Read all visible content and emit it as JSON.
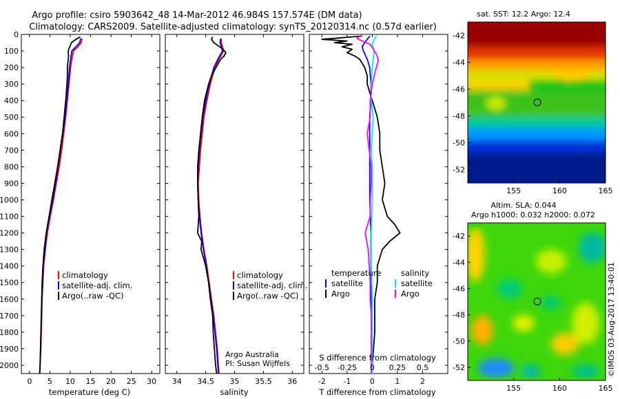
{
  "title_line1": "Argo profile: csiro 5903642_48 14-Mar-2012 46.984S 157.574E (DM data)",
  "title_line2": "Climatology: CARS2009. Satellite-adjusted climatology: synTS_20120314.nc (0.57d earlier)",
  "colors": {
    "climatology": "#ff0000",
    "satellite": "#0000ff",
    "argo": "#000000",
    "sal_satellite": "#00e5ff",
    "sal_argo": "#ff00ff"
  },
  "chart_data": [
    {
      "type": "line",
      "name": "temperature",
      "xlabel": "temperature (deg C)",
      "ylabel": "",
      "xlim": [
        -2,
        32
      ],
      "ylim": [
        2050,
        0
      ],
      "xticks": [
        "0",
        "5",
        "10",
        "15",
        "20",
        "25",
        "30"
      ],
      "xtick_values": [
        0,
        5,
        10,
        15,
        20,
        25,
        30
      ],
      "yticks": [
        "0",
        "100",
        "200",
        "300",
        "400",
        "500",
        "600",
        "700",
        "800",
        "900",
        "1000",
        "1100",
        "1200",
        "1300",
        "1400",
        "1500",
        "1600",
        "1700",
        "1800",
        "1900",
        "2000"
      ],
      "ytick_values": [
        0,
        100,
        200,
        300,
        400,
        500,
        600,
        700,
        800,
        900,
        1000,
        1100,
        1200,
        1300,
        1400,
        1500,
        1600,
        1700,
        1800,
        1900,
        2000
      ],
      "legend": [
        "climatology",
        "satellite-adj. clim.",
        "Argo(..raw -QC)"
      ],
      "series": [
        {
          "name": "climatology",
          "color_key": "climatology",
          "depth": [
            25,
            50,
            75,
            100,
            150,
            200,
            300,
            400,
            500,
            600,
            700,
            800,
            900,
            1000,
            1100,
            1200,
            1300,
            1400,
            1500,
            1600,
            1700,
            1800,
            1900,
            2000,
            2050
          ],
          "values": [
            12.9,
            12.7,
            11.9,
            10.8,
            10.4,
            10.1,
            9.7,
            9.3,
            8.9,
            8.4,
            7.9,
            7.3,
            6.6,
            5.9,
            5.1,
            4.4,
            3.9,
            3.5,
            3.3,
            3.1,
            3.0,
            2.9,
            2.8,
            2.6,
            2.5
          ]
        },
        {
          "name": "satellite-adj. clim.",
          "color_key": "satellite",
          "depth": [
            25,
            50,
            75,
            100,
            150,
            200,
            300,
            400,
            500,
            600,
            700,
            800,
            900,
            1000,
            1100,
            1200,
            1300,
            1400,
            1500,
            1600,
            1700,
            1800,
            1900,
            2000,
            2050
          ],
          "values": [
            12.6,
            12.3,
            11.4,
            10.4,
            10.1,
            9.8,
            9.5,
            9.1,
            8.7,
            8.2,
            7.6,
            7.0,
            6.4,
            5.7,
            4.9,
            4.2,
            3.8,
            3.4,
            3.2,
            3.0,
            2.9,
            2.8,
            2.7,
            2.6,
            2.5
          ]
        },
        {
          "name": "Argo(..raw -QC)",
          "color_key": "argo",
          "depth": [
            15,
            30,
            50,
            70,
            90,
            110,
            130,
            150,
            200,
            250,
            300,
            400,
            500,
            600,
            700,
            800,
            900,
            1000,
            1100,
            1200,
            1300,
            1400,
            1500,
            1600,
            1700,
            1800,
            1900,
            2000,
            2050
          ],
          "values": [
            12.5,
            11.4,
            10.3,
            10.0,
            9.6,
            9.5,
            9.6,
            9.5,
            9.3,
            9.3,
            9.2,
            8.9,
            8.5,
            8.1,
            7.5,
            6.9,
            6.2,
            5.5,
            4.8,
            4.1,
            3.6,
            3.3,
            3.1,
            3.0,
            2.9,
            2.8,
            2.7,
            2.6,
            2.5
          ]
        }
      ]
    },
    {
      "type": "line",
      "name": "salinity",
      "xlabel": "salinity",
      "xlim": [
        33.8,
        36.2
      ],
      "ylim": [
        2050,
        0
      ],
      "xticks": [
        "34",
        "34.5",
        "35",
        "35.5",
        "36"
      ],
      "xtick_values": [
        34,
        34.5,
        35,
        35.5,
        36
      ],
      "legend": [
        "climatology",
        "satellite-adj. clim.",
        "Argo(..raw -QC)"
      ],
      "annotation": [
        "Argo Australia",
        "PI: Susan Wijffels"
      ],
      "series": [
        {
          "name": "climatology",
          "color_key": "climatology",
          "depth": [
            25,
            50,
            75,
            100,
            150,
            200,
            300,
            400,
            500,
            600,
            700,
            800,
            900,
            1000,
            1100,
            1200,
            1300,
            1400,
            1500,
            1600,
            1700,
            1800,
            1900,
            2000,
            2050
          ],
          "values": [
            34.77,
            34.77,
            34.79,
            34.81,
            34.73,
            34.66,
            34.58,
            34.52,
            34.47,
            34.44,
            34.41,
            34.39,
            34.37,
            34.38,
            34.4,
            34.43,
            34.47,
            34.52,
            34.56,
            34.6,
            34.64,
            34.67,
            34.7,
            34.72,
            34.73
          ]
        },
        {
          "name": "satellite-adj. clim.",
          "color_key": "satellite",
          "depth": [
            25,
            50,
            75,
            100,
            150,
            200,
            300,
            400,
            500,
            600,
            700,
            800,
            900,
            1000,
            1100,
            1200,
            1300,
            1400,
            1500,
            1600,
            1700,
            1800,
            1900,
            2000,
            2050
          ],
          "values": [
            34.76,
            34.75,
            34.77,
            34.79,
            34.71,
            34.64,
            34.56,
            34.5,
            34.45,
            34.42,
            34.39,
            34.37,
            34.36,
            34.37,
            34.39,
            34.42,
            34.46,
            34.51,
            34.55,
            34.59,
            34.63,
            34.66,
            34.69,
            34.71,
            34.72
          ]
        },
        {
          "name": "Argo(..raw -QC)",
          "color_key": "argo",
          "depth": [
            15,
            30,
            50,
            70,
            90,
            110,
            130,
            150,
            200,
            250,
            300,
            400,
            500,
            600,
            700,
            800,
            900,
            1000,
            1100,
            1200,
            1250,
            1300,
            1400,
            1500,
            1600,
            1700,
            1800,
            1900,
            2000,
            2050
          ],
          "values": [
            34.62,
            34.6,
            34.64,
            34.72,
            34.8,
            34.85,
            34.82,
            34.76,
            34.68,
            34.6,
            34.55,
            34.48,
            34.44,
            34.41,
            34.38,
            34.36,
            34.36,
            34.37,
            34.38,
            34.36,
            34.43,
            34.42,
            34.5,
            34.55,
            34.58,
            34.62,
            34.63,
            34.65,
            34.67,
            34.69
          ]
        }
      ]
    },
    {
      "type": "line",
      "name": "differences",
      "xlabel": "T difference from climatology",
      "xlabel_top": "S difference from climatology",
      "xlim": [
        -2.5,
        3
      ],
      "ylim": [
        2050,
        0
      ],
      "xticks": [
        "-2",
        "-1",
        "0",
        "1",
        "2"
      ],
      "xtick_values": [
        -2,
        -1,
        0,
        1,
        2
      ],
      "xticks_top": [
        "-0.5",
        "-0.25",
        "0",
        "0.25",
        "0.5"
      ],
      "legend_temperature": [
        "temperature",
        "satellite",
        "Argo"
      ],
      "legend_salinity": [
        "salinity",
        "satellite",
        "Argo"
      ],
      "series": [
        {
          "name": "T satellite",
          "color_key": "satellite",
          "depth": [
            10,
            30,
            50,
            75,
            100,
            150,
            200,
            300,
            400,
            500,
            600,
            800,
            1000,
            1200,
            1400,
            1600,
            1800,
            2000,
            2050
          ],
          "values": [
            -0.1,
            -0.2,
            -0.3,
            -0.4,
            -0.35,
            -0.2,
            -0.1,
            -0.05,
            -0.05,
            -0.1,
            -0.1,
            -0.1,
            -0.1,
            -0.05,
            -0.05,
            -0.05,
            -0.03,
            -0.02,
            -0.02
          ]
        },
        {
          "name": "T Argo",
          "color_key": "argo",
          "depth": [
            10,
            20,
            30,
            40,
            50,
            60,
            75,
            90,
            110,
            130,
            150,
            200,
            250,
            300,
            350,
            400,
            500,
            600,
            700,
            800,
            900,
            1000,
            1100,
            1150,
            1200,
            1250,
            1300,
            1400,
            1500,
            1600,
            1700,
            1800,
            1900,
            2000,
            2050
          ],
          "values": [
            -0.4,
            -1.2,
            -2.0,
            -1.0,
            -1.5,
            -0.8,
            -1.2,
            -0.8,
            -1.0,
            -0.7,
            -0.5,
            -0.3,
            -0.2,
            -0.2,
            -0.1,
            0.0,
            0.2,
            0.3,
            0.3,
            0.4,
            0.5,
            0.4,
            0.6,
            0.9,
            1.1,
            0.7,
            0.4,
            0.2,
            0.2,
            0.1,
            0.1,
            0.1,
            0.05,
            0.0,
            0.0
          ]
        },
        {
          "name": "S satellite",
          "color_key": "sal_satellite",
          "depth": [
            10,
            30,
            60,
            100,
            150,
            200,
            300,
            400,
            500,
            600,
            700,
            800,
            1000,
            1200,
            1400,
            1600,
            1800,
            2000,
            2050
          ],
          "values": [
            0.04,
            0.02,
            0.0,
            0.02,
            0.01,
            0.0,
            -0.01,
            -0.01,
            0.01,
            0.0,
            -0.01,
            0.0,
            0.0,
            -0.01,
            -0.01,
            0.0,
            0.0,
            0.0,
            0.0
          ]
        },
        {
          "name": "S Argo",
          "color_key": "sal_argo",
          "depth": [
            10,
            25,
            40,
            60,
            80,
            100,
            130,
            160,
            200,
            300,
            400,
            500,
            600,
            700,
            800,
            900,
            1000,
            1100,
            1200,
            1300,
            1400,
            1500,
            1600,
            1700,
            1800,
            1900,
            2000,
            2050
          ],
          "values": [
            -0.12,
            -0.15,
            -0.1,
            -0.02,
            0.0,
            0.02,
            0.05,
            0.06,
            0.04,
            0.0,
            -0.02,
            -0.02,
            -0.05,
            -0.03,
            -0.01,
            -0.01,
            -0.02,
            -0.02,
            -0.07,
            -0.04,
            -0.03,
            -0.02,
            -0.02,
            -0.01,
            -0.01,
            -0.01,
            -0.01,
            -0.01
          ]
        }
      ]
    },
    {
      "type": "heatmap",
      "name": "sst_map",
      "title": "sat. SST: 12.2  Argo: 12.4",
      "xlim": [
        150,
        165
      ],
      "ylim": [
        -53,
        -41
      ],
      "xticks": [
        "155",
        "160",
        "165"
      ],
      "xtick_values": [
        155,
        160,
        165
      ],
      "yticks": [
        "-42",
        "-44",
        "-46",
        "-48",
        "-50",
        "-52"
      ],
      "ytick_values": [
        -42,
        -44,
        -46,
        -48,
        -50,
        -52
      ],
      "marker": {
        "lon": 157.574,
        "lat": -46.984
      }
    },
    {
      "type": "heatmap",
      "name": "sla_map",
      "title_line1": "Altim. SLA: 0.044",
      "title_line2": "Argo h1000: 0.032 h2000: 0.072",
      "xlim": [
        150,
        165
      ],
      "ylim": [
        -53,
        -41
      ],
      "xticks": [
        "155",
        "160",
        "165"
      ],
      "xtick_values": [
        155,
        160,
        165
      ],
      "yticks": [
        "-42",
        "-44",
        "-46",
        "-48",
        "-50",
        "-52"
      ],
      "ytick_values": [
        -42,
        -44,
        -46,
        -48,
        -50,
        -52
      ],
      "marker": {
        "lon": 157.574,
        "lat": -46.984
      }
    }
  ],
  "credit": "©IMOS 03-Aug-2017 13:40:01"
}
